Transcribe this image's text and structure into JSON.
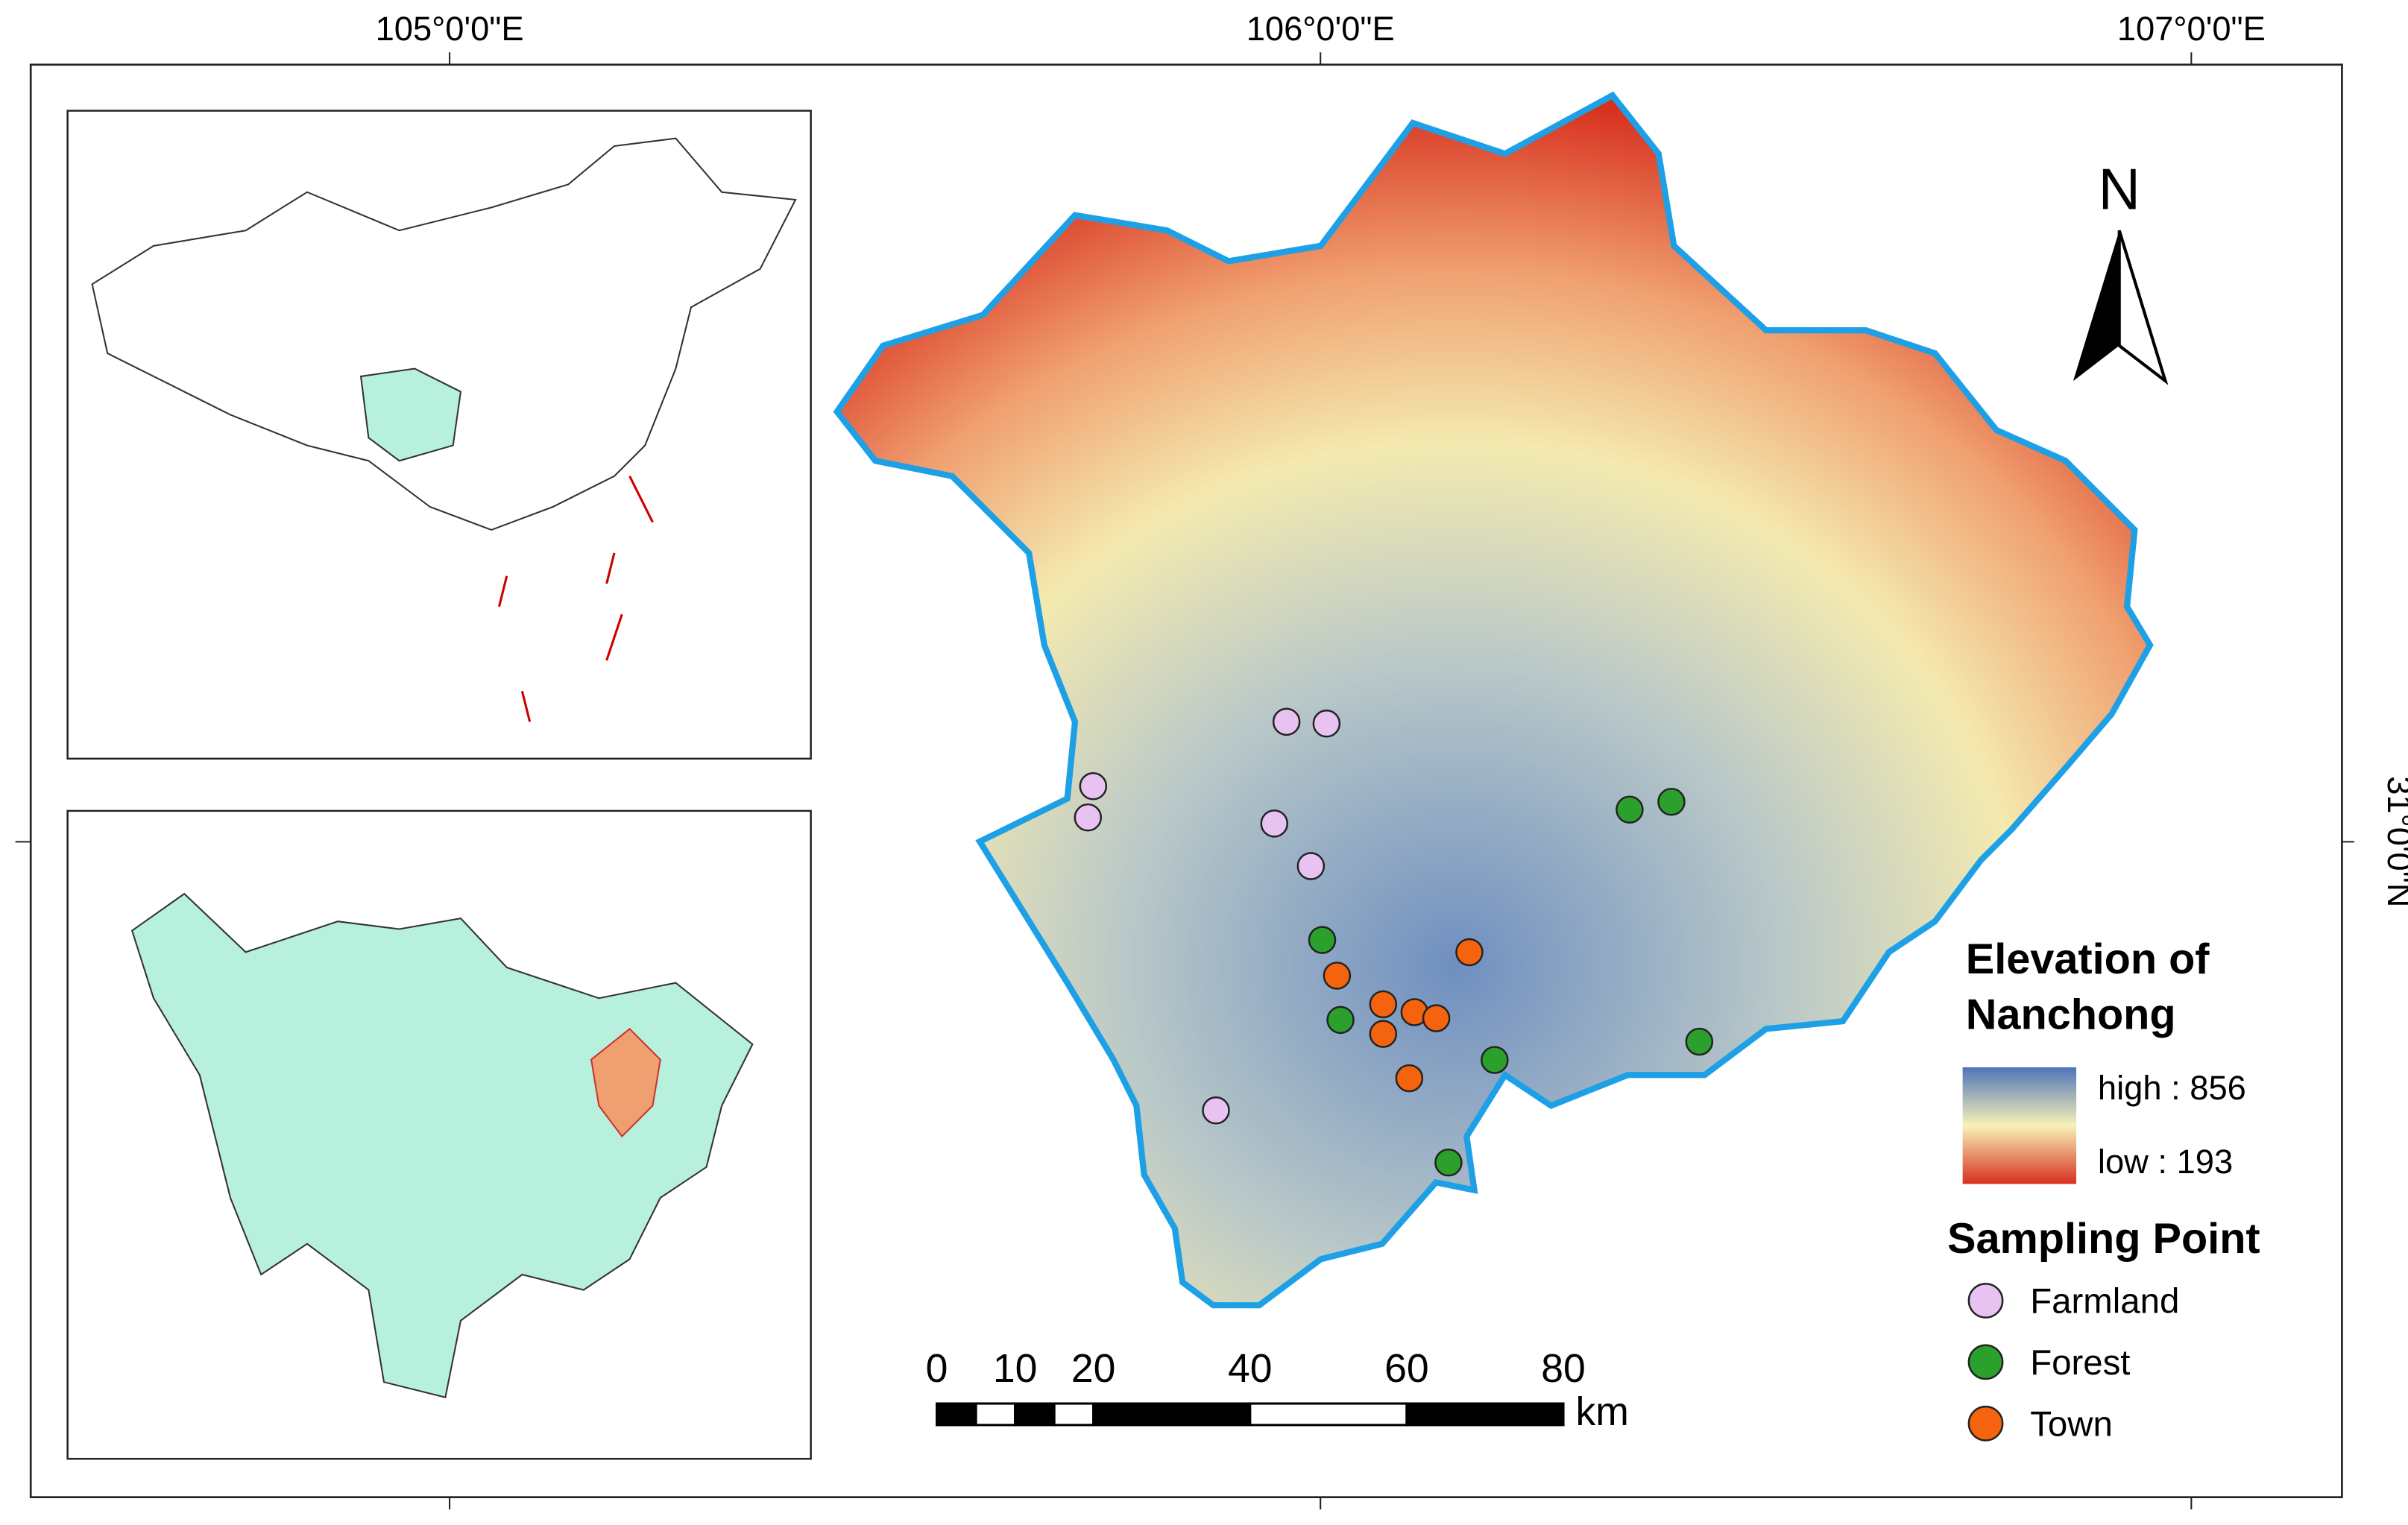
{
  "chart_data": {
    "type": "map",
    "xlim": [
      104.519,
      107.173
    ],
    "ylim": [
      30.246,
      31.894
    ],
    "xticks": [
      {
        "value": 105,
        "label": "105°0'0\"E"
      },
      {
        "value": 106,
        "label": "106°0'0\"E"
      },
      {
        "value": 107,
        "label": "107°0'0\"E"
      }
    ],
    "yticks": [
      {
        "value": 31,
        "label": "31°0'0\"N"
      }
    ],
    "north_label": "N",
    "legend_title": [
      "Elevation of",
      "Nanchong"
    ],
    "colorbar": {
      "high": {
        "value": 856,
        "label": "high : 856"
      },
      "low": {
        "value": 193,
        "label": "low : 193"
      },
      "colors": [
        "#4f74b8",
        "#f7f2b8",
        "#d7301f"
      ]
    },
    "points_title": "Sampling Point",
    "series": [
      {
        "name": "Farmland",
        "color": "#e8c3f2",
        "x": [
          105.961,
          106.007,
          105.739,
          105.733,
          105.947,
          105.989,
          105.88
        ],
        "y": [
          31.138,
          31.136,
          31.064,
          31.028,
          31.021,
          30.972,
          30.691
        ]
      },
      {
        "name": "Forest",
        "color": "#2ca02c",
        "x": [
          106.355,
          106.403,
          106.002,
          106.023,
          106.2,
          106.435,
          106.147
        ],
        "y": [
          31.037,
          31.046,
          30.887,
          30.795,
          30.749,
          30.77,
          30.631
        ]
      },
      {
        "name": "Town",
        "color": "#f4640f",
        "x": [
          106.019,
          106.171,
          106.072,
          106.108,
          106.133,
          106.072,
          106.102
        ],
        "y": [
          30.846,
          30.873,
          30.813,
          30.804,
          30.797,
          30.779,
          30.728
        ]
      }
    ],
    "scale_bar": {
      "ticks": [
        0,
        10,
        20,
        40,
        60,
        80
      ],
      "unit": "km"
    }
  }
}
